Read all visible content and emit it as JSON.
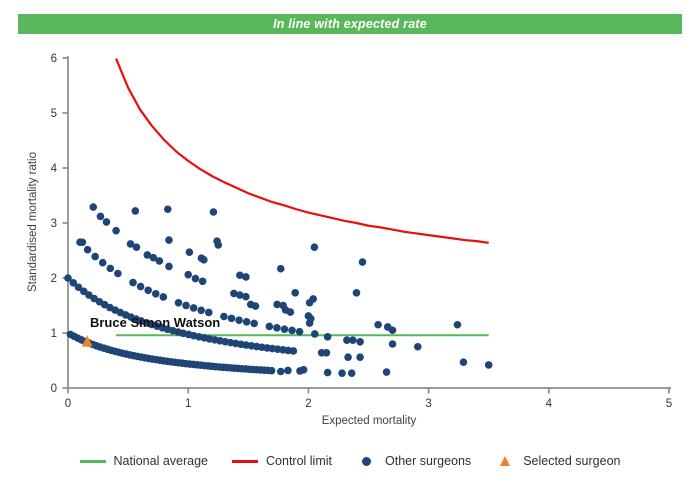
{
  "header": {
    "title": "In line with expected rate",
    "bg_color": "#5bb75c",
    "text_color": "#ffffff"
  },
  "chart": {
    "y_axis": {
      "label": "Standardised mortality ratio",
      "ticks": [
        0,
        1,
        2,
        3,
        4,
        5,
        6
      ]
    },
    "x_axis": {
      "label": "Expected mortality",
      "ticks": [
        0,
        1,
        2,
        3,
        4,
        5
      ]
    },
    "axis_color": "#8c8c8c",
    "tick_text_color": "#333333"
  },
  "chart_data": {
    "type": "scatter",
    "title": "In line with expected rate",
    "xlabel": "Expected mortality",
    "ylabel": "Standardised mortality ratio",
    "xlim": [
      0,
      5
    ],
    "ylim": [
      0,
      6
    ],
    "grid": false,
    "legend_position": "bottom",
    "national_average": {
      "y": 0.96,
      "x_range": [
        0.4,
        3.5
      ],
      "color": "#53b953"
    },
    "control_limit": {
      "color": "#ea0d0d",
      "points": [
        [
          0.4,
          5.99
        ],
        [
          0.5,
          5.46
        ],
        [
          0.6,
          5.06
        ],
        [
          0.7,
          4.76
        ],
        [
          0.8,
          4.51
        ],
        [
          0.9,
          4.3
        ],
        [
          1.0,
          4.13
        ],
        [
          1.1,
          3.98
        ],
        [
          1.2,
          3.85
        ],
        [
          1.3,
          3.74
        ],
        [
          1.4,
          3.64
        ],
        [
          1.5,
          3.54
        ],
        [
          1.6,
          3.46
        ],
        [
          1.7,
          3.38
        ],
        [
          1.8,
          3.32
        ],
        [
          1.9,
          3.25
        ],
        [
          2.0,
          3.19
        ],
        [
          2.1,
          3.14
        ],
        [
          2.2,
          3.09
        ],
        [
          2.3,
          3.04
        ],
        [
          2.4,
          3.0
        ],
        [
          2.5,
          2.95
        ],
        [
          2.6,
          2.92
        ],
        [
          2.7,
          2.88
        ],
        [
          2.8,
          2.84
        ],
        [
          2.9,
          2.81
        ],
        [
          3.0,
          2.78
        ],
        [
          3.1,
          2.75
        ],
        [
          3.2,
          2.72
        ],
        [
          3.3,
          2.69
        ],
        [
          3.4,
          2.67
        ],
        [
          3.5,
          2.64
        ]
      ]
    },
    "other_surgeons": {
      "color": "#1f4577",
      "bands": [
        [
          [
            0.02,
            0.975
          ],
          [
            0.051,
            0.939
          ],
          [
            0.082,
            0.905
          ],
          [
            0.113,
            0.873
          ],
          [
            0.144,
            0.844
          ],
          [
            0.175,
            0.817
          ],
          [
            0.206,
            0.791
          ],
          [
            0.237,
            0.767
          ],
          [
            0.268,
            0.744
          ],
          [
            0.299,
            0.723
          ],
          [
            0.33,
            0.703
          ],
          [
            0.361,
            0.684
          ],
          [
            0.392,
            0.666
          ],
          [
            0.423,
            0.648
          ],
          [
            0.454,
            0.632
          ],
          [
            0.485,
            0.617
          ],
          [
            0.516,
            0.602
          ],
          [
            0.547,
            0.588
          ],
          [
            0.578,
            0.574
          ],
          [
            0.609,
            0.562
          ],
          [
            0.64,
            0.549
          ],
          [
            0.671,
            0.538
          ],
          [
            0.702,
            0.526
          ],
          [
            0.733,
            0.516
          ],
          [
            0.764,
            0.505
          ],
          [
            0.795,
            0.495
          ],
          [
            0.826,
            0.486
          ],
          [
            0.857,
            0.477
          ],
          [
            0.888,
            0.468
          ],
          [
            0.919,
            0.459
          ],
          [
            0.95,
            0.451
          ],
          [
            0.981,
            0.443
          ],
          [
            1.012,
            0.435
          ],
          [
            1.043,
            0.428
          ],
          [
            1.074,
            0.421
          ],
          [
            1.105,
            0.414
          ],
          [
            1.136,
            0.407
          ],
          [
            1.167,
            0.401
          ],
          [
            1.198,
            0.394
          ],
          [
            1.229,
            0.388
          ],
          [
            1.26,
            0.382
          ],
          [
            1.291,
            0.377
          ],
          [
            1.322,
            0.371
          ],
          [
            1.353,
            0.366
          ],
          [
            1.384,
            0.36
          ],
          [
            1.415,
            0.355
          ],
          [
            1.446,
            0.35
          ],
          [
            1.477,
            0.346
          ],
          [
            1.508,
            0.341
          ],
          [
            1.539,
            0.336
          ],
          [
            1.57,
            0.332
          ],
          [
            1.601,
            0.328
          ],
          [
            1.632,
            0.323
          ],
          [
            1.663,
            0.319
          ],
          [
            1.694,
            0.315
          ]
        ],
        [
          [
            0.0,
            2.0
          ],
          [
            0.044,
            1.912
          ],
          [
            0.087,
            1.832
          ],
          [
            0.131,
            1.758
          ],
          [
            0.174,
            1.69
          ],
          [
            0.218,
            1.627
          ],
          [
            0.262,
            1.568
          ],
          [
            0.305,
            1.514
          ],
          [
            0.349,
            1.463
          ],
          [
            0.392,
            1.416
          ],
          [
            0.436,
            1.371
          ],
          [
            0.48,
            1.329
          ],
          [
            0.523,
            1.29
          ],
          [
            0.567,
            1.253
          ],
          [
            0.61,
            1.218
          ],
          [
            0.654,
            1.185
          ],
          [
            0.698,
            1.153
          ],
          [
            0.741,
            1.124
          ],
          [
            0.785,
            1.095
          ],
          [
            0.828,
            1.068
          ],
          [
            0.872,
            1.043
          ],
          [
            0.916,
            1.018
          ],
          [
            0.959,
            0.995
          ],
          [
            1.003,
            0.973
          ],
          [
            1.046,
            0.951
          ],
          [
            1.09,
            0.931
          ],
          [
            1.134,
            0.912
          ],
          [
            1.177,
            0.893
          ],
          [
            1.221,
            0.875
          ],
          [
            1.264,
            0.858
          ],
          [
            1.308,
            0.841
          ],
          [
            1.352,
            0.825
          ],
          [
            1.395,
            0.81
          ],
          [
            1.439,
            0.795
          ],
          [
            1.482,
            0.781
          ],
          [
            1.526,
            0.767
          ],
          [
            1.57,
            0.754
          ],
          [
            1.613,
            0.741
          ],
          [
            1.657,
            0.729
          ],
          [
            1.7,
            0.717
          ],
          [
            1.744,
            0.705
          ],
          [
            1.788,
            0.694
          ],
          [
            1.831,
            0.683
          ],
          [
            1.875,
            0.673
          ]
        ],
        [
          [
            0.1,
            2.652
          ],
          [
            0.163,
            2.514
          ],
          [
            0.226,
            2.39
          ],
          [
            0.289,
            2.278
          ],
          [
            0.352,
            2.175
          ],
          [
            0.415,
            2.082
          ],
          [
            0.541,
            1.917
          ],
          [
            0.604,
            1.844
          ],
          [
            0.667,
            1.777
          ],
          [
            0.73,
            1.713
          ],
          [
            0.793,
            1.655
          ],
          [
            0.919,
            1.549
          ],
          [
            0.982,
            1.501
          ],
          [
            1.045,
            1.456
          ],
          [
            1.108,
            1.413
          ],
          [
            1.171,
            1.373
          ],
          [
            1.297,
            1.3
          ],
          [
            1.36,
            1.266
          ],
          [
            1.423,
            1.233
          ],
          [
            1.486,
            1.203
          ],
          [
            1.549,
            1.173
          ],
          [
            1.675,
            1.119
          ],
          [
            1.738,
            1.094
          ],
          [
            1.801,
            1.07
          ],
          [
            1.864,
            1.047
          ],
          [
            1.927,
            1.024
          ],
          [
            2.053,
            0.983
          ]
        ],
        [
          [
            0.21,
            3.29
          ],
          [
            0.27,
            3.12
          ],
          [
            0.32,
            3.02
          ],
          [
            0.4,
            2.86
          ],
          [
            0.52,
            2.62
          ],
          [
            0.57,
            2.56
          ],
          [
            0.66,
            2.42
          ],
          [
            0.71,
            2.37
          ],
          [
            0.76,
            2.31
          ],
          [
            0.84,
            2.21
          ],
          [
            1.0,
            2.06
          ],
          [
            1.06,
            1.99
          ],
          [
            1.12,
            1.94
          ],
          [
            1.38,
            1.72
          ],
          [
            1.43,
            1.69
          ],
          [
            1.48,
            1.66
          ],
          [
            1.74,
            1.52
          ],
          [
            1.79,
            1.5
          ]
        ]
      ],
      "scattered": [
        [
          0.56,
          3.22
        ],
        [
          0.83,
          3.25
        ],
        [
          1.21,
          3.2
        ],
        [
          0.12,
          2.65
        ],
        [
          0.84,
          2.69
        ],
        [
          1.01,
          2.47
        ],
        [
          1.11,
          2.36
        ],
        [
          1.25,
          2.6
        ],
        [
          1.13,
          2.33
        ],
        [
          1.24,
          2.67
        ],
        [
          1.43,
          2.05
        ],
        [
          1.48,
          2.02
        ],
        [
          1.77,
          2.17
        ],
        [
          2.05,
          2.56
        ],
        [
          2.45,
          2.29
        ],
        [
          1.52,
          1.52
        ],
        [
          1.56,
          1.49
        ],
        [
          1.89,
          1.73
        ],
        [
          2.4,
          1.73
        ],
        [
          2.04,
          1.62
        ],
        [
          2.01,
          1.55
        ],
        [
          1.81,
          1.42
        ],
        [
          1.85,
          1.38
        ],
        [
          2.0,
          1.31
        ],
        [
          2.02,
          1.26
        ],
        [
          2.01,
          1.18
        ],
        [
          2.58,
          1.15
        ],
        [
          2.66,
          1.11
        ],
        [
          3.24,
          1.15
        ],
        [
          2.7,
          1.05
        ],
        [
          2.16,
          0.93
        ],
        [
          2.32,
          0.87
        ],
        [
          2.37,
          0.87
        ],
        [
          2.43,
          0.84
        ],
        [
          2.7,
          0.8
        ],
        [
          2.91,
          0.75
        ],
        [
          2.11,
          0.64
        ],
        [
          2.15,
          0.64
        ],
        [
          2.33,
          0.56
        ],
        [
          2.43,
          0.56
        ],
        [
          3.29,
          0.47
        ],
        [
          3.5,
          0.42
        ],
        [
          1.77,
          0.3
        ],
        [
          1.83,
          0.32
        ],
        [
          1.93,
          0.31
        ],
        [
          1.96,
          0.33
        ],
        [
          2.16,
          0.28
        ],
        [
          2.28,
          0.27
        ],
        [
          2.36,
          0.27
        ],
        [
          2.65,
          0.29
        ]
      ]
    },
    "selected_surgeon": {
      "color": "#ee8428",
      "label": "Bruce Simon Watson",
      "point": [
        0.16,
        0.84
      ],
      "label_anchor": [
        0.183,
        1.11
      ]
    }
  },
  "legend": {
    "items": [
      {
        "label": "National average",
        "swatch": "line",
        "color": "#53b953"
      },
      {
        "label": "Control limit",
        "swatch": "line",
        "color": "#ea0d0d"
      },
      {
        "label": "Other surgeons",
        "swatch": "dot",
        "color": "#1f4577"
      },
      {
        "label": "Selected surgeon",
        "swatch": "triangle",
        "color": "#ee8428"
      }
    ]
  }
}
